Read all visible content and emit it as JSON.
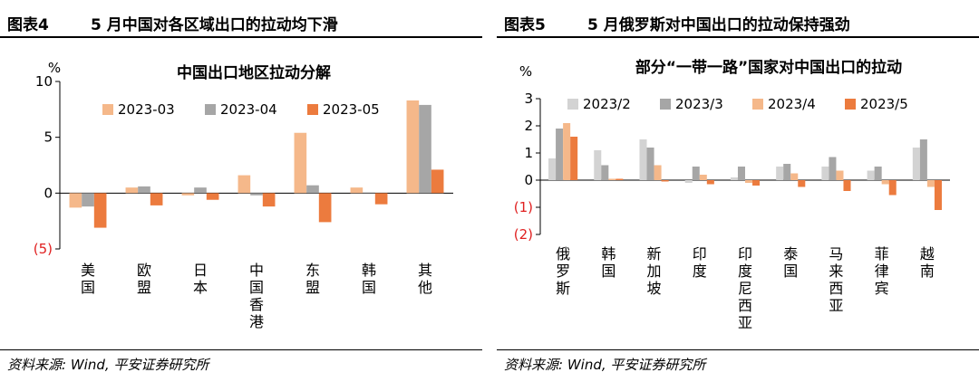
{
  "left": {
    "figure_no": "图表4",
    "figure_title": "5 月中国对各区域出口的拉动均下滑",
    "source": "资料来源: Wind, 平安证券研究所"
  },
  "right": {
    "figure_no": "图表5",
    "figure_title": "5 月俄罗斯对中国出口的拉动保持强劲",
    "source": "资料来源: Wind, 平安证券研究所"
  },
  "chart_data": [
    {
      "type": "bar",
      "title": "中国出口地区拉动分解",
      "unit": "%",
      "categories": [
        "美国",
        "欧盟",
        "日本",
        "中国香港",
        "东盟",
        "韩国",
        "其他"
      ],
      "series": [
        {
          "name": "2023-03",
          "color": "#F5B88A",
          "values": [
            -1.3,
            0.5,
            -0.2,
            1.6,
            5.4,
            0.5,
            8.3
          ]
        },
        {
          "name": "2023-04",
          "color": "#A6A6A6",
          "values": [
            -1.2,
            0.6,
            0.5,
            -0.2,
            0.7,
            0.05,
            7.9
          ]
        },
        {
          "name": "2023-05",
          "color": "#EC7B3E",
          "values": [
            -3.1,
            -1.1,
            -0.6,
            -1.2,
            -2.6,
            -1.0,
            2.1
          ]
        }
      ],
      "ylim": [
        -5,
        10
      ],
      "yticks": [
        {
          "v": 10,
          "label": "10"
        },
        {
          "v": 5,
          "label": "5"
        },
        {
          "v": 0,
          "label": "0"
        },
        {
          "v": -5,
          "label": "(5)"
        }
      ],
      "grid": false,
      "legend": "top-center"
    },
    {
      "type": "bar",
      "title": "部分“一带一路”国家对中国出口的拉动",
      "unit": "%",
      "categories": [
        "俄罗斯",
        "韩国",
        "新加坡",
        "印度",
        "印度尼西亚",
        "泰国",
        "马来西亚",
        "菲律宾",
        "越南"
      ],
      "series": [
        {
          "name": "2023/2",
          "color": "#D3D3D3",
          "values": [
            0.8,
            1.1,
            1.5,
            -0.1,
            0.1,
            0.5,
            0.5,
            0.35,
            1.2
          ]
        },
        {
          "name": "2023/3",
          "color": "#A6A6A6",
          "values": [
            1.9,
            0.55,
            1.2,
            0.5,
            0.5,
            0.6,
            0.85,
            0.5,
            1.5
          ]
        },
        {
          "name": "2023/4",
          "color": "#F5B88A",
          "values": [
            2.1,
            0.05,
            0.55,
            0.2,
            -0.1,
            0.25,
            0.35,
            -0.15,
            -0.25
          ]
        },
        {
          "name": "2023/5",
          "color": "#EC7B3E",
          "values": [
            1.6,
            0.05,
            -0.05,
            -0.15,
            -0.2,
            -0.25,
            -0.4,
            -0.55,
            -1.1
          ]
        }
      ],
      "ylim": [
        -2,
        3
      ],
      "yticks": [
        {
          "v": 3,
          "label": "3"
        },
        {
          "v": 2,
          "label": "2"
        },
        {
          "v": 1,
          "label": "1"
        },
        {
          "v": 0,
          "label": "0"
        },
        {
          "v": -1,
          "label": "(1)"
        },
        {
          "v": -2,
          "label": "(2)"
        }
      ],
      "grid": false,
      "legend": "top"
    }
  ]
}
